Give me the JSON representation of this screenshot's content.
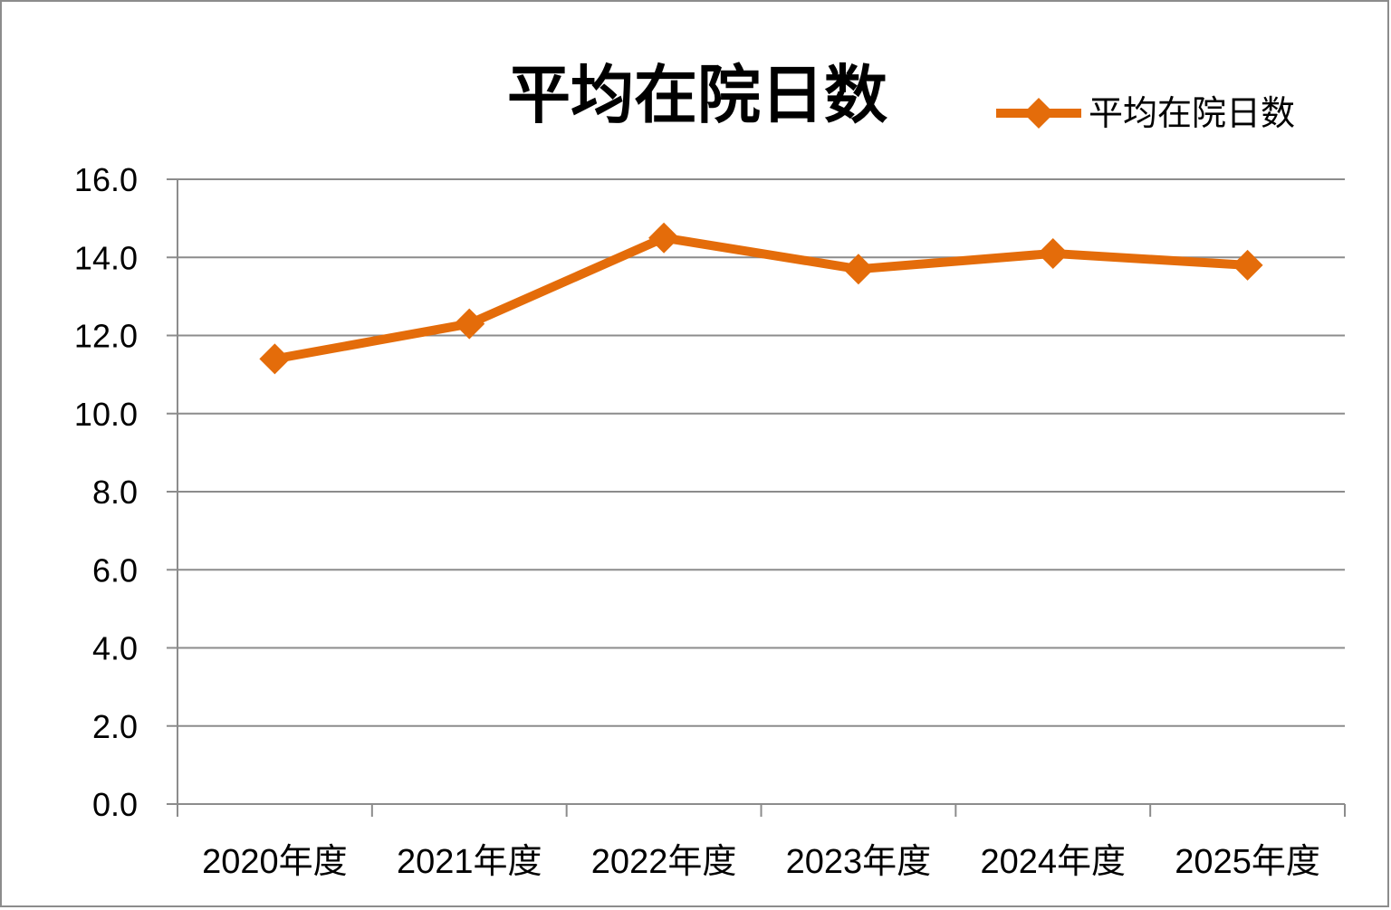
{
  "chart_data": {
    "type": "line",
    "title": "平均在院日数",
    "categories": [
      "2020年度",
      "2021年度",
      "2022年度",
      "2023年度",
      "2024年度",
      "2025年度"
    ],
    "series": [
      {
        "name": "平均在院日数",
        "values": [
          11.4,
          12.3,
          14.5,
          13.7,
          14.1,
          13.8
        ],
        "color": "#e46c0a"
      }
    ],
    "y_ticks": [
      "0.0",
      "2.0",
      "4.0",
      "6.0",
      "8.0",
      "10.0",
      "12.0",
      "14.0",
      "16.0"
    ],
    "ylim": [
      0,
      16
    ],
    "grid": true,
    "legend_position": "top-right",
    "marker": "diamond"
  }
}
